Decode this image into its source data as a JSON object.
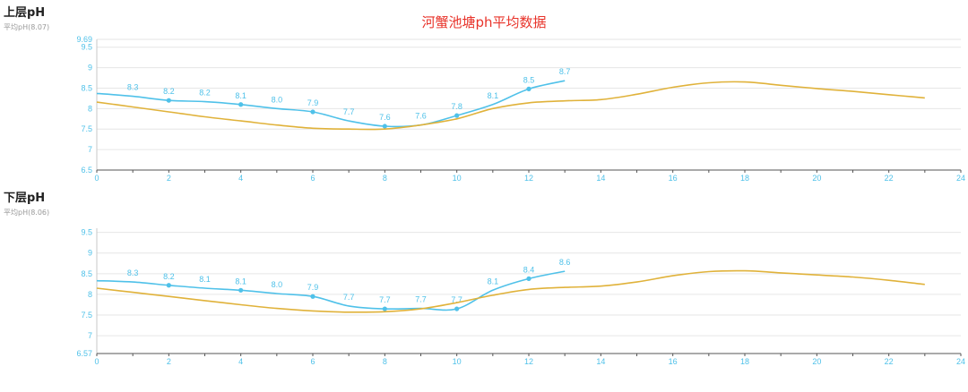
{
  "page": {
    "title": "河蟹池塘ph平均数据"
  },
  "panels": [
    {
      "title": "上层pH",
      "subtitle": "平均pH(8.07)"
    },
    {
      "title": "下层pH",
      "subtitle": "平均pH(8.06)"
    }
  ],
  "colors": {
    "blue_series": "#4fc1e9",
    "gold_series": "#e0b23a",
    "axis": "#4fc1e9",
    "grid": "#e6e6e6",
    "title": "#e8332a"
  },
  "chart_data": [
    {
      "type": "line",
      "xlim": [
        0,
        24
      ],
      "ylim": [
        6.5,
        9.69
      ],
      "x_ticks": [
        0,
        2,
        4,
        6,
        8,
        10,
        12,
        14,
        16,
        18,
        20,
        22,
        24
      ],
      "y_ticks": [
        6.5,
        7,
        7.5,
        8,
        8.5,
        9,
        9.5,
        9.69
      ],
      "grid": true,
      "series": [
        {
          "color": "#4fc1e9",
          "x": [
            0,
            1,
            2,
            3,
            4,
            5,
            6,
            7,
            8,
            9,
            10,
            11,
            12,
            13
          ],
          "y": [
            8.37,
            8.3,
            8.2,
            8.17,
            8.1,
            8.0,
            7.92,
            7.7,
            7.57,
            7.6,
            7.83,
            8.1,
            8.48,
            8.68
          ],
          "labels": [
            "",
            "8.3",
            "8.2",
            "8.2",
            "8.1",
            "8.0",
            "7.9",
            "7.7",
            "7.6",
            "7.6",
            "7.8",
            "8.1",
            "8.5",
            "8.7"
          ]
        },
        {
          "color": "#e0b23a",
          "x": [
            0,
            1,
            2,
            3,
            4,
            5,
            6,
            7,
            8,
            9,
            10,
            11,
            12,
            13,
            14,
            15,
            16,
            17,
            18,
            19,
            20,
            21,
            22,
            23
          ],
          "y": [
            8.16,
            8.04,
            7.92,
            7.8,
            7.7,
            7.6,
            7.52,
            7.5,
            7.5,
            7.6,
            7.75,
            8.0,
            8.14,
            8.19,
            8.22,
            8.35,
            8.52,
            8.63,
            8.65,
            8.57,
            8.49,
            8.42,
            8.34,
            8.26
          ]
        }
      ]
    },
    {
      "type": "line",
      "xlim": [
        0,
        24
      ],
      "ylim": [
        6.57,
        9.6
      ],
      "x_ticks": [
        0,
        2,
        4,
        6,
        8,
        10,
        12,
        14,
        16,
        18,
        20,
        22,
        24
      ],
      "y_ticks": [
        6.57,
        7,
        7.5,
        8,
        8.5,
        9,
        9.5
      ],
      "grid": true,
      "series": [
        {
          "color": "#4fc1e9",
          "x": [
            0,
            1,
            2,
            3,
            4,
            5,
            6,
            7,
            8,
            9,
            10,
            11,
            12,
            13
          ],
          "y": [
            8.33,
            8.3,
            8.22,
            8.15,
            8.1,
            8.02,
            7.95,
            7.72,
            7.65,
            7.66,
            7.65,
            8.1,
            8.38,
            8.56
          ],
          "labels": [
            "",
            "8.3",
            "8.2",
            "8.1",
            "8.1",
            "8.0",
            "7.9",
            "7.7",
            "7.7",
            "7.7",
            "7.7",
            "8.1",
            "8.4",
            "8.6"
          ]
        },
        {
          "color": "#e0b23a",
          "x": [
            0,
            1,
            2,
            3,
            4,
            5,
            6,
            7,
            8,
            9,
            10,
            11,
            12,
            13,
            14,
            15,
            16,
            17,
            18,
            19,
            20,
            21,
            22,
            23
          ],
          "y": [
            8.15,
            8.05,
            7.95,
            7.85,
            7.75,
            7.66,
            7.6,
            7.57,
            7.58,
            7.65,
            7.8,
            7.98,
            8.12,
            8.17,
            8.2,
            8.3,
            8.45,
            8.55,
            8.57,
            8.52,
            8.47,
            8.42,
            8.34,
            8.24
          ]
        }
      ]
    }
  ]
}
